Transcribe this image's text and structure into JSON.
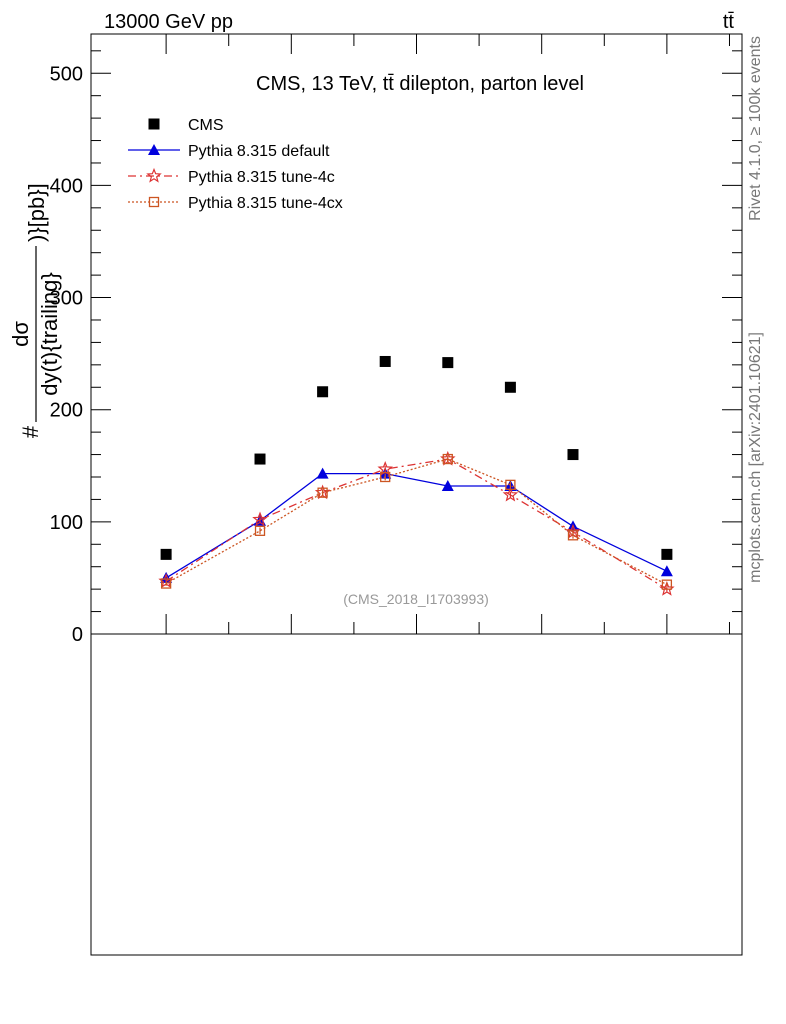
{
  "header": {
    "energy_label": "13000 GeV pp",
    "process_label": "tt̄"
  },
  "side_labels": {
    "rivet": "Rivet 4.1.0, ≥ 100k events",
    "mcplots": "mcplots.cern.ch [arXiv:2401.10621]"
  },
  "chart_data": {
    "type": "scatter",
    "title": "CMS, 13 TeV, tt̄ dilepton, parton level",
    "analysis_tag": "(CMS_2018_I1703993)",
    "ylabel": {
      "prefix": "#",
      "numerator": "dσ",
      "denominator": "dy(t){trailing}",
      "suffix": ")}[pb}]"
    },
    "ylim": [
      0,
      535
    ],
    "y_ticks": [
      0,
      100,
      200,
      300,
      400,
      500
    ],
    "x": [
      -2.0,
      -1.25,
      -0.75,
      -0.25,
      0.25,
      0.75,
      1.25,
      2.0
    ],
    "xlim": [
      -2.6,
      2.6
    ],
    "legend_position": "top-left",
    "series": [
      {
        "name": "CMS",
        "style": "data",
        "color": "#000000",
        "values": [
          71,
          156,
          216,
          243,
          242,
          220,
          160,
          71
        ]
      },
      {
        "name": "Pythia 8.315 default",
        "style": "solid-triangle",
        "color": "#0000dd",
        "values": [
          50,
          101,
          143,
          143,
          132,
          132,
          96,
          56
        ],
        "errors": [
          2,
          3,
          4,
          3,
          3,
          3,
          3,
          2
        ]
      },
      {
        "name": "Pythia 8.315 tune-4c",
        "style": "dashdot-star",
        "color": "#dd3333",
        "values": [
          47,
          102,
          126,
          147,
          156,
          124,
          91,
          40
        ],
        "errors": [
          2,
          3,
          3,
          3,
          3,
          3,
          3,
          2
        ]
      },
      {
        "name": "Pythia 8.315 tune-4cx",
        "style": "dotted-square",
        "color": "#cc5522",
        "values": [
          45,
          92,
          126,
          140,
          156,
          133,
          88,
          44
        ],
        "errors": [
          2,
          3,
          3,
          3,
          3,
          3,
          3,
          2
        ]
      }
    ]
  }
}
